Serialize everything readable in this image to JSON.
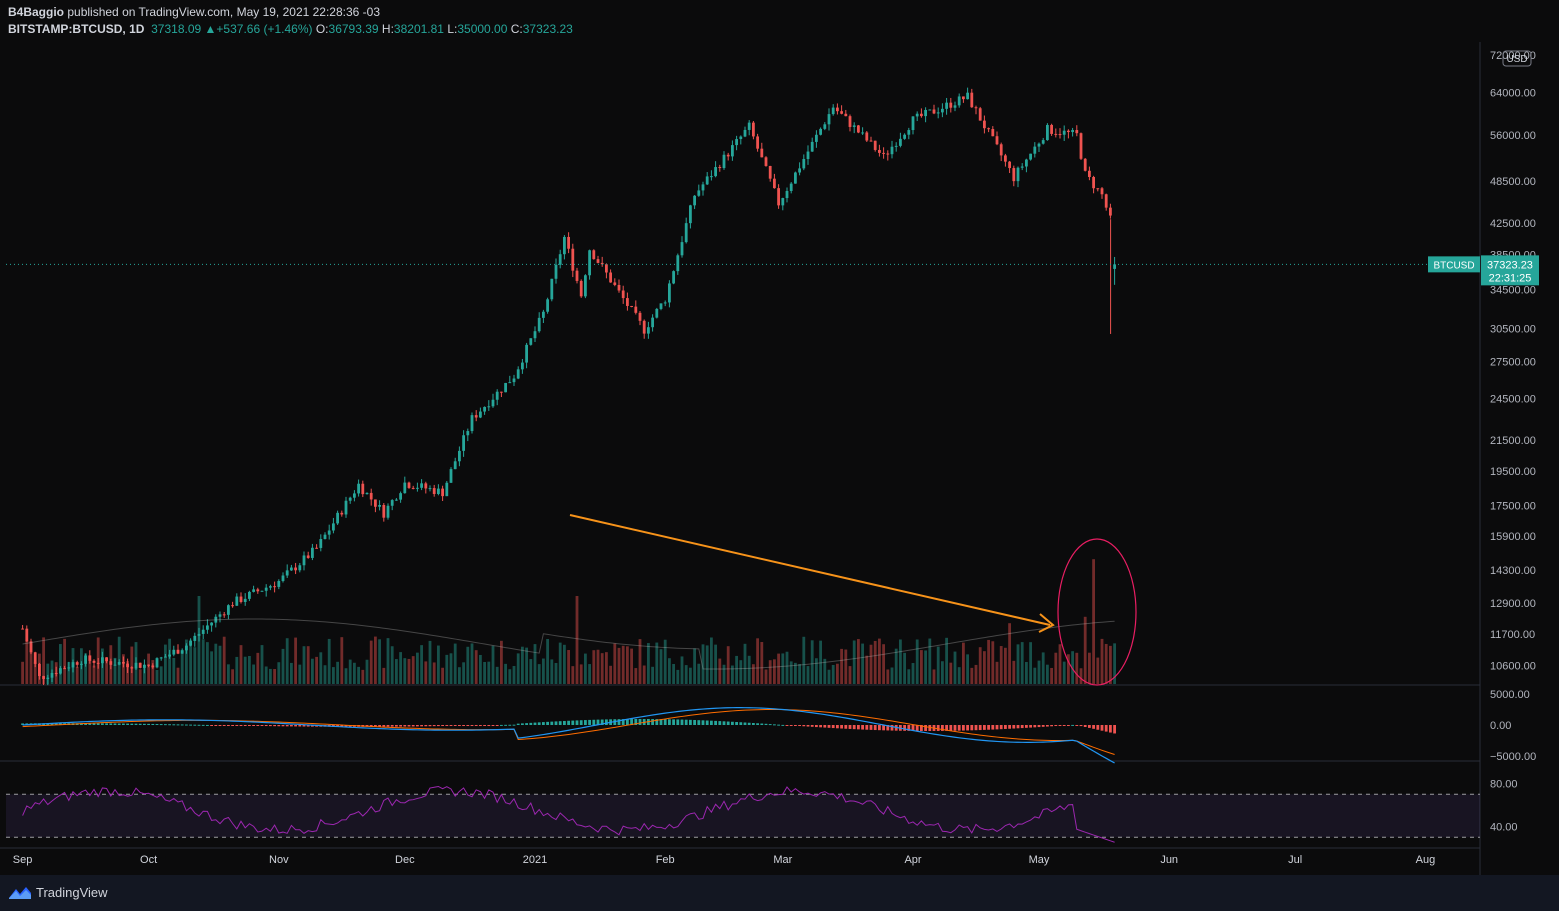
{
  "header": {
    "author": "B4Baggio",
    "published_text": "published on TradingView.com, May 19, 2021 22:28:36 -03",
    "symbol": "BITSTAMP:BTCUSD, 1D",
    "last": "37318.09",
    "change_arrow": "▲",
    "change": "+537.66 (+1.46%)",
    "o_label": "O:",
    "o": "36793.39",
    "h_label": "H:",
    "h": "38201.81",
    "l_label": "L:",
    "l": "35000.00",
    "c_label": "C:",
    "c": "37323.23"
  },
  "currency_badge": "USD",
  "price_tag": {
    "symbol": "BTCUSD",
    "price": "37323.23",
    "countdown": "22:31:25"
  },
  "brand": "TradingView",
  "colors": {
    "up": "#26a69a",
    "down": "#ef5350",
    "arrow": "#f7931a",
    "ellipse": "#e91e63",
    "rsi": "#9c27b0",
    "macd": "#2196f3",
    "signal": "#ff6d00"
  },
  "chart_data": [
    {
      "type": "candlestick",
      "title": "BITSTAMP:BTCUSD, 1D",
      "scale": "log",
      "ylim": [
        10000,
        75000
      ],
      "y_ticks": [
        "72000.00",
        "64000.00",
        "56000.00",
        "48500.00",
        "42500.00",
        "38500.00",
        "34500.00",
        "30500.00",
        "27500.00",
        "24500.00",
        "21500.00",
        "19500.00",
        "17500.00",
        "15900.00",
        "14300.00",
        "12900.00",
        "11700.00",
        "10600.00"
      ],
      "x_ticks": [
        "Sep",
        "Oct",
        "Nov",
        "Dec",
        "2021",
        "Feb",
        "Mar",
        "Apr",
        "May",
        "Jun",
        "Jul",
        "Aug"
      ],
      "price_path": [
        {
          "date": "2020-09-01",
          "close": 11900
        },
        {
          "date": "2020-09-05",
          "close": 10200
        },
        {
          "date": "2020-09-15",
          "close": 10800
        },
        {
          "date": "2020-10-01",
          "close": 10600
        },
        {
          "date": "2020-10-10",
          "close": 11300
        },
        {
          "date": "2020-10-21",
          "close": 12900
        },
        {
          "date": "2020-11-01",
          "close": 13800
        },
        {
          "date": "2020-11-10",
          "close": 15300
        },
        {
          "date": "2020-11-20",
          "close": 18700
        },
        {
          "date": "2020-11-26",
          "close": 17100
        },
        {
          "date": "2020-12-01",
          "close": 18800
        },
        {
          "date": "2020-12-10",
          "close": 18250
        },
        {
          "date": "2020-12-17",
          "close": 23000
        },
        {
          "date": "2020-12-27",
          "close": 26300
        },
        {
          "date": "2021-01-03",
          "close": 32000
        },
        {
          "date": "2021-01-08",
          "close": 40600
        },
        {
          "date": "2021-01-12",
          "close": 33900
        },
        {
          "date": "2021-01-14",
          "close": 39200
        },
        {
          "date": "2021-01-22",
          "close": 33500
        },
        {
          "date": "2021-01-27",
          "close": 30400
        },
        {
          "date": "2021-02-01",
          "close": 33500
        },
        {
          "date": "2021-02-08",
          "close": 46400
        },
        {
          "date": "2021-02-21",
          "close": 57500
        },
        {
          "date": "2021-02-28",
          "close": 45200
        },
        {
          "date": "2021-03-13",
          "close": 61200
        },
        {
          "date": "2021-03-25",
          "close": 52300
        },
        {
          "date": "2021-04-01",
          "close": 58700
        },
        {
          "date": "2021-04-14",
          "close": 63200
        },
        {
          "date": "2021-04-25",
          "close": 49000
        },
        {
          "date": "2021-05-03",
          "close": 57000
        },
        {
          "date": "2021-05-10",
          "close": 56000
        },
        {
          "date": "2021-05-12",
          "close": 49500
        },
        {
          "date": "2021-05-16",
          "close": 46400
        },
        {
          "date": "2021-05-18",
          "close": 42900
        },
        {
          "date": "2021-05-19",
          "close": 37323.23
        }
      ],
      "last_bar": {
        "date": "2021-05-19",
        "open": 36793.39,
        "high": 38201.81,
        "low": 35000.0,
        "close": 37323.23
      },
      "annotations": [
        "declining volume trend arrow from early January to mid May",
        "ellipse around volume spike of May 19"
      ]
    },
    {
      "type": "bar",
      "name": "Volume",
      "volume_ma": true
    },
    {
      "type": "line",
      "name": "MACD",
      "y_ticks": [
        "5000.00",
        "0.00",
        "-5000.00"
      ],
      "ylim": [
        -5000,
        5000
      ]
    },
    {
      "type": "line",
      "name": "RSI",
      "y_ticks": [
        "80.00",
        "40.00"
      ],
      "bands": [
        70,
        30
      ]
    }
  ]
}
